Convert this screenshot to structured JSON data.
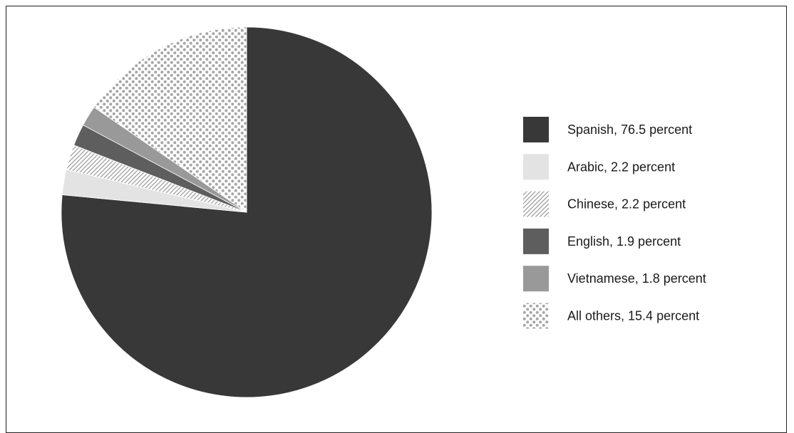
{
  "chart_data": {
    "type": "pie",
    "title": "",
    "start_angle_deg": 0,
    "direction": "clockwise",
    "legend_position": "right",
    "categories": [
      "Spanish",
      "Arabic",
      "Chinese",
      "English",
      "Vietnamese",
      "All others"
    ],
    "values": [
      76.5,
      2.2,
      2.2,
      1.9,
      1.8,
      15.4
    ],
    "legend_labels": [
      "Spanish, 76.5 percent",
      "Arabic, 2.2 percent",
      "Chinese, 2.2 percent",
      "English, 1.9 percent",
      "Vietnamese, 1.8 percent",
      "All others, 15.4 percent"
    ],
    "fills": [
      "solid",
      "solid",
      "hatch",
      "solid",
      "solid",
      "dots"
    ],
    "colors": [
      "#383838",
      "#e3e3e3",
      "#9e9e9e",
      "#5e5e5e",
      "#999999",
      "#9c9c9c"
    ]
  }
}
